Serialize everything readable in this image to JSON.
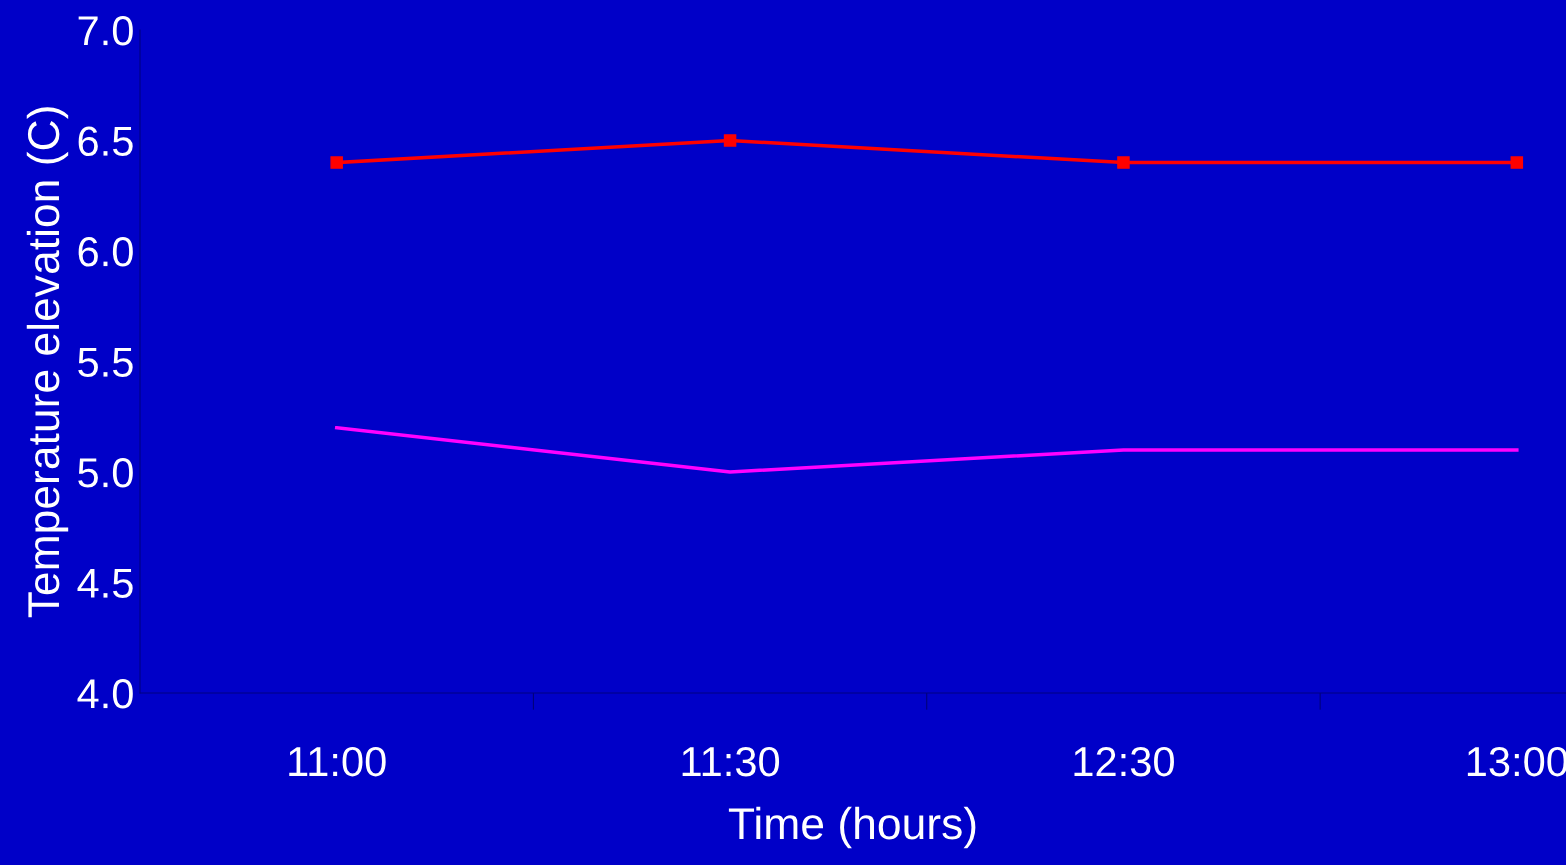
{
  "chart_data": {
    "type": "line",
    "xlabel": "Time (hours)",
    "ylabel": "Temperature elevation (C)",
    "categories": [
      "11:00",
      "11:30",
      "12:30",
      "13:00"
    ],
    "series": [
      {
        "color": "#ff0000",
        "values": [
          6.4,
          6.5,
          6.4,
          6.4
        ],
        "marker": "square"
      },
      {
        "color": "#ff00ff",
        "values": [
          5.2,
          5.0,
          5.1,
          5.1
        ],
        "marker": "none"
      }
    ],
    "ylim": [
      4,
      7
    ],
    "yticks": [
      {
        "value": 4,
        "label": "4.0"
      },
      {
        "value": 4.5,
        "label": "4.5"
      },
      {
        "value": 5,
        "label": "5.0"
      },
      {
        "value": 5.5,
        "label": "5.5"
      },
      {
        "value": 6,
        "label": "6.0"
      },
      {
        "value": 6.5,
        "label": "6.5"
      },
      {
        "value": 7,
        "label": "7.0"
      }
    ],
    "grid": false,
    "legend": false
  }
}
